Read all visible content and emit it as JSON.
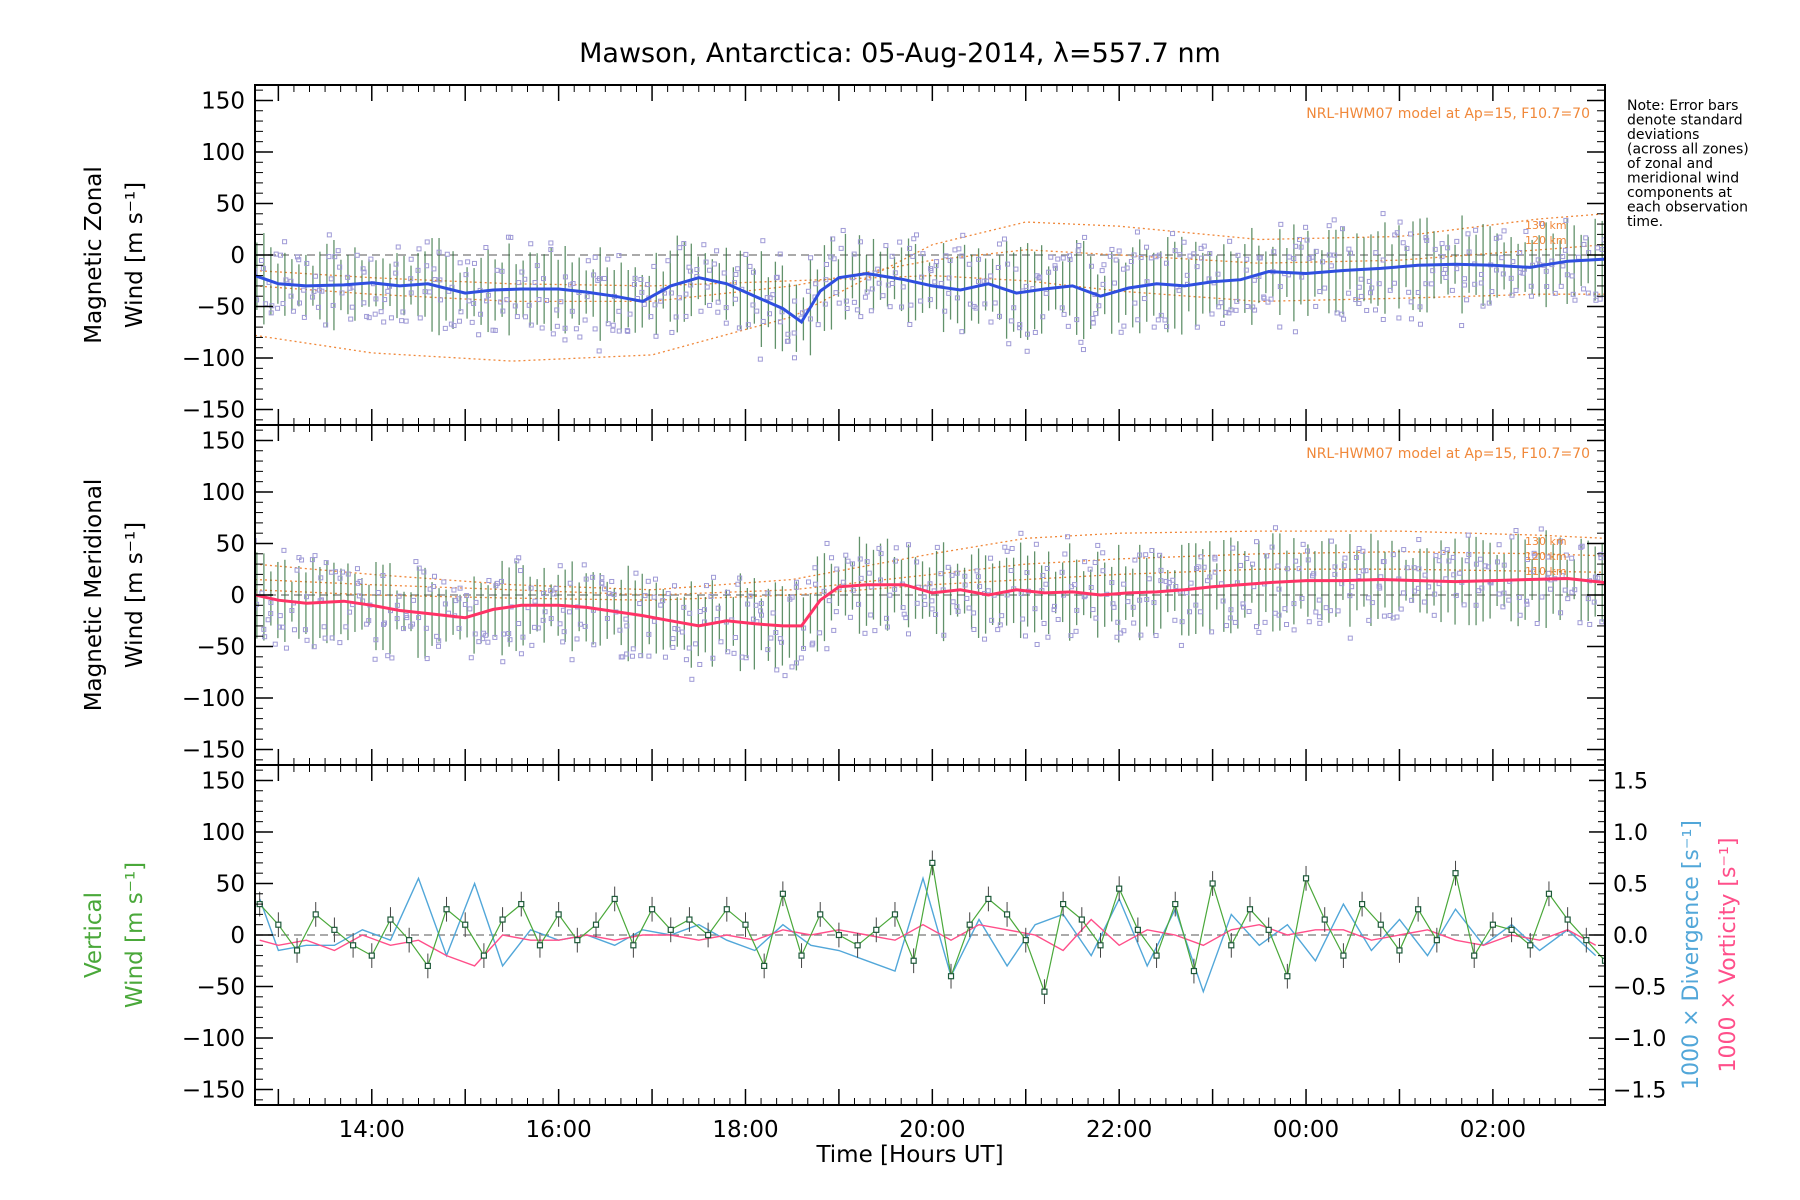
{
  "colors": {
    "axis": "#000000",
    "zonal_mean": "#2f4fe0",
    "meridional_mean": "#ff3366",
    "model": "#f0883a",
    "vertical": "#4aa83a",
    "divergence": "#52a7d9",
    "vorticity": "#ff4f8a",
    "scatter": "#9f9ad6",
    "zero_line": "#777777"
  },
  "figure": {
    "title": "Mawson, Antarctica: 05-Aug-2014, λ=557.7 nm",
    "note": [
      "Note: Error bars",
      "denote standard",
      "deviations",
      "(across all zones)",
      "of zonal and",
      "meridional wind",
      "components at",
      "each observation",
      "time."
    ],
    "xlabel": "Time [Hours UT]",
    "xticks": [
      "14:00",
      "16:00",
      "18:00",
      "20:00",
      "22:00",
      "00:00",
      "02:00"
    ]
  },
  "chart_data": [
    {
      "type": "line",
      "panel": "zonal",
      "ylabel_line1": "Magnetic Zonal",
      "ylabel_line2": "Wind [m s⁻¹]",
      "ylim": [
        -165,
        165
      ],
      "yticks": [
        150,
        100,
        50,
        0,
        -50,
        -100,
        -150
      ],
      "xlim": [
        12.75,
        27.2
      ],
      "model_label": "NRL-HWM07 model at Ap=15, F10.7=70",
      "model_levels": [
        "130 km",
        "120 km"
      ],
      "mean_series": {
        "x": [
          12.75,
          13.0,
          13.3,
          13.7,
          14.0,
          14.3,
          14.6,
          15.0,
          15.3,
          15.6,
          16.0,
          16.3,
          16.6,
          16.9,
          17.2,
          17.5,
          17.8,
          18.1,
          18.4,
          18.6,
          18.8,
          19.0,
          19.3,
          19.7,
          20.0,
          20.3,
          20.6,
          20.9,
          21.2,
          21.5,
          21.8,
          22.1,
          22.4,
          22.7,
          23.0,
          23.3,
          23.6,
          24.0,
          24.4,
          24.8,
          25.2,
          25.6,
          26.0,
          26.4,
          26.8,
          27.2
        ],
        "y": [
          -20,
          -28,
          -30,
          -29,
          -27,
          -30,
          -28,
          -37,
          -34,
          -33,
          -33,
          -36,
          -40,
          -45,
          -30,
          -22,
          -28,
          -40,
          -52,
          -65,
          -35,
          -22,
          -18,
          -24,
          -30,
          -34,
          -28,
          -37,
          -33,
          -30,
          -40,
          -32,
          -28,
          -30,
          -26,
          -24,
          -16,
          -18,
          -15,
          -13,
          -10,
          -9,
          -10,
          -12,
          -6,
          -4
        ]
      },
      "model_curves": [
        {
          "name": "130 km",
          "x": [
            12.75,
            14.0,
            15.5,
            17.0,
            18.5,
            20.0,
            21.0,
            22.0,
            23.5,
            25.0,
            26.5,
            27.2
          ],
          "y": [
            -78,
            -95,
            -103,
            -97,
            -60,
            10,
            32,
            28,
            15,
            18,
            35,
            40
          ]
        },
        {
          "name": "120 km",
          "x": [
            12.75,
            14.0,
            15.5,
            17.0,
            18.5,
            20.0,
            21.0,
            22.0,
            23.5,
            25.0,
            26.5,
            27.2
          ],
          "y": [
            -30,
            -38,
            -45,
            -45,
            -30,
            -5,
            5,
            0,
            -8,
            -5,
            5,
            10
          ]
        },
        {
          "name": "110 km",
          "x": [
            12.75,
            14.0,
            15.5,
            17.0,
            18.5,
            20.0,
            21.0,
            22.0,
            23.5,
            25.0,
            26.5,
            27.2
          ],
          "y": [
            -15,
            -22,
            -28,
            -30,
            -25,
            -20,
            -25,
            -35,
            -45,
            -42,
            -38,
            -38
          ]
        }
      ]
    },
    {
      "type": "line",
      "panel": "meridional",
      "ylabel_line1": "Magnetic Meridional",
      "ylabel_line2": "Wind [m s⁻¹]",
      "ylim": [
        -165,
        165
      ],
      "yticks": [
        150,
        100,
        50,
        0,
        -50,
        -100,
        -150
      ],
      "xlim": [
        12.75,
        27.2
      ],
      "model_label": "NRL-HWM07 model at Ap=15, F10.7=70",
      "model_levels": [
        "130 km",
        "120 km",
        "110 km"
      ],
      "mean_series": {
        "x": [
          12.75,
          13.0,
          13.3,
          13.7,
          14.0,
          14.3,
          14.6,
          15.0,
          15.3,
          15.6,
          16.0,
          16.3,
          16.6,
          16.9,
          17.2,
          17.5,
          17.8,
          18.1,
          18.4,
          18.6,
          18.8,
          19.0,
          19.3,
          19.7,
          20.0,
          20.3,
          20.6,
          20.9,
          21.2,
          21.5,
          21.8,
          22.1,
          22.4,
          22.7,
          23.0,
          23.3,
          23.6,
          24.0,
          24.4,
          24.8,
          25.2,
          25.6,
          26.0,
          26.4,
          26.8,
          27.2
        ],
        "y": [
          0,
          -5,
          -8,
          -6,
          -10,
          -15,
          -18,
          -22,
          -14,
          -10,
          -10,
          -12,
          -16,
          -20,
          -25,
          -30,
          -25,
          -28,
          -30,
          -30,
          -5,
          8,
          10,
          10,
          2,
          5,
          0,
          5,
          2,
          3,
          0,
          2,
          3,
          5,
          8,
          10,
          12,
          14,
          14,
          15,
          14,
          13,
          14,
          15,
          16,
          12
        ]
      },
      "model_curves": [
        {
          "name": "130 km",
          "x": [
            12.75,
            14.0,
            15.5,
            17.0,
            18.5,
            20.0,
            21.0,
            22.0,
            23.5,
            25.0,
            26.5,
            27.2
          ],
          "y": [
            30,
            20,
            10,
            5,
            15,
            40,
            55,
            60,
            62,
            62,
            58,
            55
          ]
        },
        {
          "name": "120 km",
          "x": [
            12.75,
            14.0,
            15.5,
            17.0,
            18.5,
            20.0,
            21.0,
            22.0,
            23.5,
            25.0,
            26.5,
            27.2
          ],
          "y": [
            15,
            10,
            5,
            0,
            5,
            20,
            30,
            35,
            40,
            42,
            40,
            38
          ]
        },
        {
          "name": "110 km",
          "x": [
            12.75,
            14.0,
            15.5,
            17.0,
            18.5,
            20.0,
            21.0,
            22.0,
            23.5,
            25.0,
            26.5,
            27.2
          ],
          "y": [
            5,
            0,
            -3,
            -5,
            0,
            10,
            15,
            20,
            25,
            25,
            23,
            22
          ]
        }
      ]
    },
    {
      "type": "line",
      "panel": "vertical",
      "ylabel_line1": "Vertical",
      "ylabel_line2": "Wind [m s⁻¹]",
      "right_ylabel_div": "1000 × Divergence [s⁻¹]",
      "right_ylabel_vort": "1000 × Vorticity [s⁻¹]",
      "ylim": [
        -165,
        165
      ],
      "yticks": [
        150,
        100,
        50,
        0,
        -50,
        -100,
        -150
      ],
      "y2lim": [
        -1.65,
        1.65
      ],
      "y2ticks": [
        "1.5",
        "1.0",
        "0.5",
        "0.0",
        "−0.5",
        "−1.0",
        "−1.5"
      ],
      "y2tick_values": [
        1.5,
        1.0,
        0.5,
        0.0,
        -0.5,
        -1.0,
        -1.5
      ],
      "xlim": [
        12.75,
        27.2
      ],
      "series": [
        {
          "name": "Vertical Wind",
          "x": [
            12.8,
            13.0,
            13.2,
            13.4,
            13.6,
            13.8,
            14.0,
            14.2,
            14.4,
            14.6,
            14.8,
            15.0,
            15.2,
            15.4,
            15.6,
            15.8,
            16.0,
            16.2,
            16.4,
            16.6,
            16.8,
            17.0,
            17.2,
            17.4,
            17.6,
            17.8,
            18.0,
            18.2,
            18.4,
            18.6,
            18.8,
            19.0,
            19.2,
            19.4,
            19.6,
            19.8,
            20.0,
            20.2,
            20.4,
            20.6,
            20.8,
            21.0,
            21.2,
            21.4,
            21.6,
            21.8,
            22.0,
            22.2,
            22.4,
            22.6,
            22.8,
            23.0,
            23.2,
            23.4,
            23.6,
            23.8,
            24.0,
            24.2,
            24.4,
            24.6,
            24.8,
            25.0,
            25.2,
            25.4,
            25.6,
            25.8,
            26.0,
            26.2,
            26.4,
            26.6,
            26.8,
            27.0,
            27.2
          ],
          "y": [
            30,
            10,
            -15,
            20,
            5,
            -10,
            -20,
            15,
            -5,
            -30,
            25,
            10,
            -20,
            15,
            30,
            -10,
            20,
            -5,
            10,
            35,
            -10,
            25,
            5,
            15,
            0,
            25,
            10,
            -30,
            40,
            -20,
            20,
            0,
            -10,
            5,
            20,
            -25,
            70,
            -40,
            10,
            35,
            20,
            -5,
            -55,
            30,
            15,
            -10,
            45,
            5,
            -20,
            30,
            -35,
            50,
            -10,
            25,
            5,
            -40,
            55,
            15,
            -20,
            30,
            10,
            -15,
            25,
            -5,
            60,
            -20,
            10,
            5,
            -10,
            40,
            15,
            -5,
            -25
          ]
        },
        {
          "name": "1000 × Divergence",
          "x": [
            12.8,
            13.0,
            13.3,
            13.6,
            13.9,
            14.2,
            14.5,
            14.8,
            15.1,
            15.4,
            15.7,
            16.0,
            16.3,
            16.6,
            16.9,
            17.2,
            17.5,
            17.8,
            18.1,
            18.4,
            18.7,
            19.0,
            19.3,
            19.6,
            19.9,
            20.2,
            20.5,
            20.8,
            21.1,
            21.4,
            21.7,
            22.0,
            22.3,
            22.6,
            22.9,
            23.2,
            23.5,
            23.8,
            24.1,
            24.4,
            24.7,
            25.0,
            25.3,
            25.6,
            25.9,
            26.2,
            26.5,
            26.8,
            27.1
          ],
          "y": [
            0.35,
            -0.15,
            -0.1,
            -0.1,
            0.05,
            -0.05,
            0.55,
            -0.2,
            0.5,
            -0.3,
            0.05,
            -0.05,
            0.0,
            -0.1,
            0.05,
            0.0,
            0.1,
            -0.05,
            -0.15,
            0.1,
            -0.1,
            -0.15,
            -0.25,
            -0.35,
            0.55,
            -0.4,
            0.15,
            -0.3,
            0.1,
            0.2,
            -0.2,
            0.35,
            -0.3,
            0.25,
            -0.55,
            0.2,
            -0.1,
            0.1,
            -0.25,
            0.3,
            -0.15,
            0.15,
            -0.2,
            0.25,
            -0.1,
            0.1,
            -0.15,
            0.05,
            -0.2
          ]
        },
        {
          "name": "1000 × Vorticity",
          "x": [
            12.8,
            13.0,
            13.3,
            13.6,
            13.9,
            14.2,
            14.5,
            14.8,
            15.1,
            15.4,
            15.7,
            16.0,
            16.3,
            16.6,
            16.9,
            17.2,
            17.5,
            17.8,
            18.1,
            18.4,
            18.7,
            19.0,
            19.3,
            19.6,
            19.9,
            20.2,
            20.5,
            20.8,
            21.1,
            21.4,
            21.7,
            22.0,
            22.3,
            22.6,
            22.9,
            23.2,
            23.5,
            23.8,
            24.1,
            24.4,
            24.7,
            25.0,
            25.3,
            25.6,
            25.9,
            26.2,
            26.5,
            26.8,
            27.1
          ],
          "y": [
            -0.05,
            -0.1,
            -0.05,
            -0.15,
            0.0,
            -0.1,
            -0.05,
            -0.2,
            -0.3,
            0.0,
            -0.05,
            -0.05,
            0.0,
            -0.05,
            0.0,
            0.0,
            -0.05,
            0.0,
            -0.05,
            0.05,
            0.0,
            0.05,
            0.0,
            -0.05,
            0.1,
            -0.05,
            0.1,
            0.05,
            0.0,
            -0.15,
            0.15,
            -0.1,
            0.05,
            0.0,
            -0.1,
            0.05,
            0.1,
            0.0,
            0.05,
            0.05,
            -0.05,
            0.0,
            0.05,
            -0.05,
            -0.1,
            0.0,
            -0.05,
            0.05,
            -0.1
          ]
        }
      ]
    }
  ]
}
